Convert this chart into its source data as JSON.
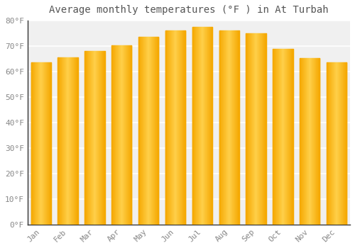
{
  "title": "Average monthly temperatures (°F ) in At Turbah",
  "months": [
    "Jan",
    "Feb",
    "Mar",
    "Apr",
    "May",
    "Jun",
    "Jul",
    "Aug",
    "Sep",
    "Oct",
    "Nov",
    "Dec"
  ],
  "values": [
    63.5,
    65.5,
    68.0,
    70.2,
    73.5,
    76.0,
    77.5,
    76.0,
    75.0,
    69.0,
    65.3,
    63.5
  ],
  "bar_color_center": "#FFD04A",
  "bar_color_edge": "#F5A800",
  "background_color": "#FFFFFF",
  "plot_bg_color": "#F0F0F0",
  "grid_color": "#FFFFFF",
  "text_color": "#888888",
  "border_color": "#AAAAAA",
  "ylim": [
    0,
    80
  ],
  "yticks": [
    0,
    10,
    20,
    30,
    40,
    50,
    60,
    70,
    80
  ],
  "ytick_labels": [
    "0°F",
    "10°F",
    "20°F",
    "30°F",
    "40°F",
    "50°F",
    "60°F",
    "70°F",
    "80°F"
  ],
  "title_fontsize": 10,
  "tick_fontsize": 8,
  "title_color": "#555555"
}
